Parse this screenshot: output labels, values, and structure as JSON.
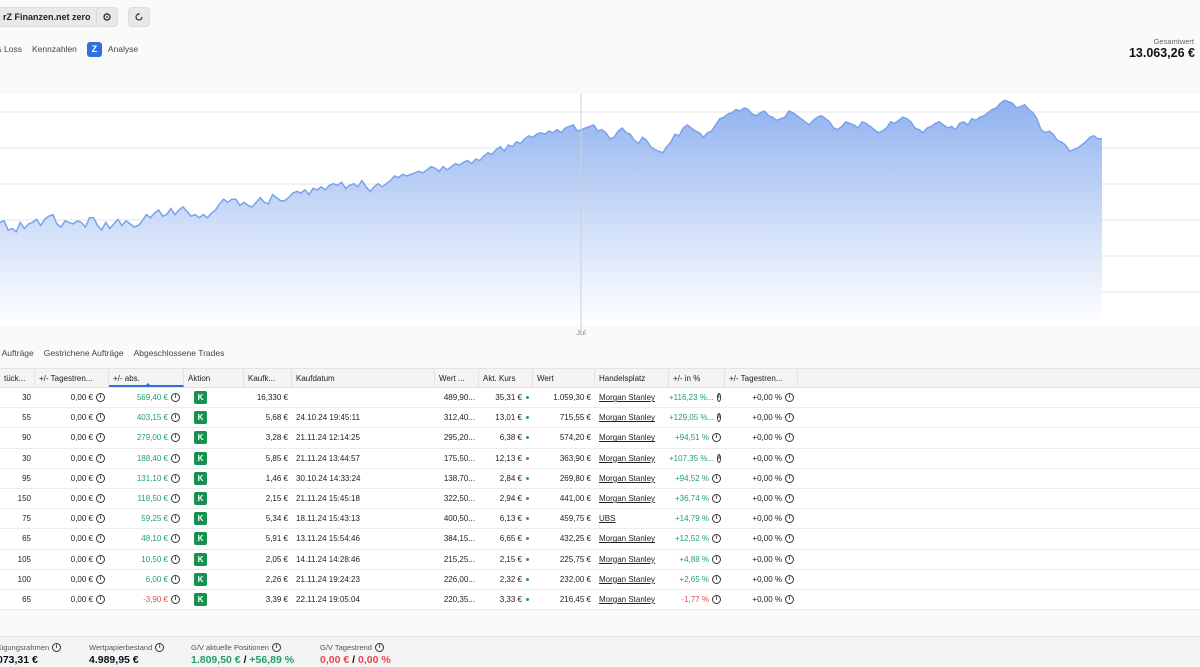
{
  "header": {
    "account_label": "rZ Finanzen.net zero",
    "settings_icon": "gear-icon",
    "refresh_icon": "refresh-icon"
  },
  "tabs": [
    {
      "label": "& Loss"
    },
    {
      "label": "Kennzahlen"
    },
    {
      "label": "Analyse",
      "icon": "finanzen-zero-logo"
    }
  ],
  "total": {
    "label": "Gesamtwert",
    "value": "13.063,26 €"
  },
  "chart_data": {
    "type": "area",
    "x_tick_labels": [
      "Jul"
    ],
    "y": [
      167,
      168,
      162,
      163,
      161,
      167,
      163,
      166,
      167,
      169,
      165,
      169,
      171,
      172,
      166,
      164,
      168,
      167,
      166,
      168,
      167,
      164,
      170,
      170,
      165,
      162,
      167,
      163,
      166,
      169,
      165,
      168,
      166,
      164,
      165,
      168,
      172,
      170,
      173,
      175,
      171,
      172,
      176,
      172,
      175,
      177,
      174,
      171,
      172,
      170,
      172,
      170,
      173,
      175,
      179,
      182,
      180,
      182,
      182,
      178,
      180,
      178,
      177,
      180,
      183,
      180,
      179,
      185,
      183,
      181,
      181,
      183,
      186,
      187,
      186,
      188,
      185,
      189,
      188,
      190,
      188,
      191,
      192,
      191,
      193,
      189,
      191,
      192,
      190,
      194,
      190,
      187,
      190,
      192,
      190,
      192,
      194,
      197,
      196,
      198,
      197,
      198,
      199,
      200,
      199,
      201,
      203,
      202,
      200,
      203,
      201,
      203,
      205,
      204,
      206,
      207,
      205,
      208,
      207,
      210,
      212,
      211,
      214,
      216,
      213,
      217,
      216,
      219,
      218,
      221,
      223,
      222,
      224,
      225,
      224,
      226,
      225,
      227,
      225,
      228,
      229,
      230,
      226,
      227,
      228,
      229,
      230,
      226,
      227,
      225,
      221,
      222,
      226,
      228,
      225,
      224,
      220,
      218,
      222,
      220,
      216,
      214,
      213,
      212,
      216,
      219,
      224,
      223,
      228,
      230,
      228,
      226,
      225,
      222,
      225,
      226,
      230,
      234,
      235,
      237,
      238,
      240,
      239,
      241,
      240,
      237,
      236,
      238,
      239,
      236,
      235,
      233,
      234,
      235,
      239,
      238,
      236,
      234,
      232,
      230,
      233,
      235,
      236,
      234,
      232,
      228,
      227,
      229,
      232,
      231,
      230,
      228,
      232,
      231,
      229,
      227,
      225,
      226,
      228,
      232,
      231,
      233,
      235,
      234,
      232,
      228,
      227,
      225,
      228,
      229,
      231,
      232,
      230,
      228,
      229,
      227,
      231,
      232,
      230,
      234,
      233,
      235,
      236,
      238,
      240,
      241,
      244,
      246,
      245,
      244,
      241,
      242,
      243,
      240,
      238,
      234,
      227,
      225,
      226,
      224,
      220,
      219,
      217,
      213,
      214,
      215,
      217,
      219,
      222,
      223,
      221,
      221
    ]
  },
  "order_tabs": [
    {
      "label": "e Aufträge"
    },
    {
      "label": "Gestrichene Aufträge"
    },
    {
      "label": "Abgeschlossene Trades"
    }
  ],
  "table": {
    "columns": [
      "tück...",
      "+/- Tagestren...",
      "+/- abs.",
      "Aktion",
      "Kaufk...",
      "Kaufdatum",
      "Wert ...",
      "Akt. Kurs",
      "Wert",
      "Handelsplatz",
      "+/- in %",
      "+/- Tagestren..."
    ],
    "action_label": "K",
    "info_glyph": "i",
    "rows": [
      {
        "qty": "30",
        "day_abs": "0,00 €",
        "abs": "569,40 €",
        "abs_sign": "pos",
        "buy_price": "16,330 €",
        "buy_date": "",
        "buy_value": "489,90...",
        "price": "35,31 €",
        "value": "1.059,30 €",
        "exchange": "Morgan Stanley",
        "pct": "+116,23 %...",
        "pct_sign": "pos",
        "day_pct": "+0,00 %"
      },
      {
        "qty": "55",
        "day_abs": "0,00 €",
        "abs": "403,15 €",
        "abs_sign": "pos",
        "buy_price": "5,68 €",
        "buy_date": "24.10.24 19:45:11",
        "buy_value": "312,40...",
        "price": "13,01 €",
        "value": "715,55 €",
        "exchange": "Morgan Stanley",
        "pct": "+129,05 %...",
        "pct_sign": "pos",
        "day_pct": "+0,00 %"
      },
      {
        "qty": "90",
        "day_abs": "0,00 €",
        "abs": "279,00 €",
        "abs_sign": "pos",
        "buy_price": "3,28 €",
        "buy_date": "21.11.24 12:14:25",
        "buy_value": "295,20...",
        "price": "6,38 €",
        "value": "574,20 €",
        "exchange": "Morgan Stanley",
        "pct": "+94,51 %",
        "pct_sign": "pos",
        "day_pct": "+0,00 %"
      },
      {
        "qty": "30",
        "day_abs": "0,00 €",
        "abs": "188,40 €",
        "abs_sign": "pos",
        "buy_price": "5,85 €",
        "buy_date": "21.11.24 13:44:57",
        "buy_value": "175,50...",
        "price": "12,13 €",
        "value": "363,90 €",
        "exchange": "Morgan Stanley",
        "pct": "+107,35 %...",
        "pct_sign": "pos",
        "day_pct": "+0,00 %"
      },
      {
        "qty": "95",
        "day_abs": "0,00 €",
        "abs": "131,10 €",
        "abs_sign": "pos",
        "buy_price": "1,46 €",
        "buy_date": "30.10.24 14:33:24",
        "buy_value": "138,70...",
        "price": "2,84 €",
        "value": "269,80 €",
        "exchange": "Morgan Stanley",
        "pct": "+94,52 %",
        "pct_sign": "pos",
        "day_pct": "+0,00 %"
      },
      {
        "qty": "150",
        "day_abs": "0,00 €",
        "abs": "118,50 €",
        "abs_sign": "pos",
        "buy_price": "2,15 €",
        "buy_date": "21.11.24 15:45:18",
        "buy_value": "322,50...",
        "price": "2,94 €",
        "value": "441,00 €",
        "exchange": "Morgan Stanley",
        "pct": "+36,74 %",
        "pct_sign": "pos",
        "day_pct": "+0,00 %"
      },
      {
        "qty": "75",
        "day_abs": "0,00 €",
        "abs": "59,25 €",
        "abs_sign": "pos",
        "buy_price": "5,34 €",
        "buy_date": "18.11.24 15:43:13",
        "buy_value": "400,50...",
        "price": "6,13 €",
        "value": "459,75 €",
        "exchange": "UBS",
        "pct": "+14,79 %",
        "pct_sign": "pos",
        "day_pct": "+0,00 %"
      },
      {
        "qty": "65",
        "day_abs": "0,00 €",
        "abs": "48,10 €",
        "abs_sign": "pos",
        "buy_price": "5,91 €",
        "buy_date": "13.11.24 15:54:46",
        "buy_value": "384,15...",
        "price": "6,65 €",
        "value": "432,25 €",
        "exchange": "Morgan Stanley",
        "pct": "+12,52 %",
        "pct_sign": "pos",
        "day_pct": "+0,00 %"
      },
      {
        "qty": "105",
        "day_abs": "0,00 €",
        "abs": "10,50 €",
        "abs_sign": "pos",
        "buy_price": "2,05 €",
        "buy_date": "14.11.24 14:28:46",
        "buy_value": "215,25...",
        "price": "2,15 €",
        "value": "225,75 €",
        "exchange": "Morgan Stanley",
        "pct": "+4,88 %",
        "pct_sign": "pos",
        "day_pct": "+0,00 %"
      },
      {
        "qty": "100",
        "day_abs": "0,00 €",
        "abs": "6,00 €",
        "abs_sign": "pos",
        "buy_price": "2,26 €",
        "buy_date": "21.11.24 19:24:23",
        "buy_value": "226,00...",
        "price": "2,32 €",
        "value": "232,00 €",
        "exchange": "Morgan Stanley",
        "pct": "+2,65 %",
        "pct_sign": "pos",
        "day_pct": "+0,00 %"
      },
      {
        "qty": "65",
        "day_abs": "0,00 €",
        "abs": "-3,90 €",
        "abs_sign": "neg",
        "buy_price": "3,39 €",
        "buy_date": "22.11.24 19:05:04",
        "buy_value": "220,35...",
        "price": "3,33 €",
        "value": "216,45 €",
        "exchange": "Morgan Stanley",
        "pct": "-1,77 %",
        "pct_sign": "neg",
        "day_pct": "+0,00 %"
      }
    ]
  },
  "footer": {
    "buying_power": {
      "label": "fügungsrahmen",
      "value": "073,31 €"
    },
    "portfolio": {
      "label": "Wertpapierbestand",
      "value": "4.989,95 €"
    },
    "gv_positions": {
      "label": "G/V aktuelle Positionen",
      "value_abs": "1.809,50 €",
      "separator": "/",
      "value_pct": "+56,89 %"
    },
    "gv_day": {
      "label": "G/V Tagestrend",
      "value_abs": "0,00 €",
      "separator": "/",
      "value_pct": "0,00 %"
    }
  },
  "colors": {
    "accent": "#2f6fe0",
    "positive": "#22a06b",
    "negative": "#e5484d",
    "area_top": "#8fb1ef",
    "area_bottom": "#ffffff",
    "badge": "#15924f"
  }
}
